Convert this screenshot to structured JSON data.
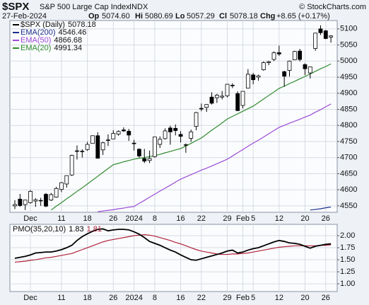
{
  "header": {
    "symbol": "$SPX",
    "name": "S&P 500 Large Cap Index",
    "exchange": "INDX",
    "copyright": "© StockCharts.com",
    "date": "27-Feb-2024",
    "quote": [
      {
        "label": "Op",
        "value": "5074.60"
      },
      {
        "label": "Hi",
        "value": "5080.69"
      },
      {
        "label": "Lo",
        "value": "5057.29"
      },
      {
        "label": "Cl",
        "value": "5078.18"
      },
      {
        "label": "Chg",
        "value": "+8.65 (+0.17%)"
      }
    ]
  },
  "chart_data": [
    {
      "type": "candlestick",
      "up_color": "#ffffff",
      "down_color": "#000000",
      "categories": [
        null,
        null,
        null,
        "Dec",
        null,
        null,
        null,
        null,
        null,
        "11",
        null,
        null,
        null,
        null,
        "18",
        null,
        null,
        null,
        null,
        "26",
        null,
        null,
        null,
        "2024",
        null,
        null,
        null,
        "8",
        null,
        null,
        null,
        null,
        "16",
        null,
        null,
        null,
        "22",
        null,
        null,
        null,
        null,
        "29",
        null,
        null,
        "Feb",
        null,
        "5",
        null,
        null,
        null,
        null,
        "12",
        null,
        null,
        null,
        null,
        "20",
        null,
        null,
        null,
        "26",
        null
      ],
      "candles": {
        "name": "$SPX (Daily)",
        "color": "#000000",
        "open": [
          4550,
          4571,
          4554,
          4560,
          4565,
          4566,
          4586,
          4568,
          4577,
          4601,
          4618,
          4646,
          4721,
          4720,
          4725,
          4744,
          4768,
          4724,
          4754,
          4758,
          4773,
          4786,
          4782,
          4745,
          4726,
          4697,
          4691,
          4703,
          4741,
          4759,
          4792,
          4791,
          4772,
          4740,
          4760,
          4797,
          4853,
          4856,
          4888,
          4886,
          4888,
          4892,
          4925,
          4899,
          4862,
          4916,
          4957,
          4950,
          4973,
          4995,
          5005,
          5026,
          4967,
          4971,
          5004,
          5031,
          4989,
          4963,
          5039,
          5100,
          5094,
          5074.6
        ],
        "high": [
          4568,
          4587,
          4569,
          4599,
          4574,
          4575,
          4590,
          4590,
          4609,
          4624,
          4644,
          4709,
          4738,
          4726,
          4749,
          4769,
          4779,
          4749,
          4772,
          4785,
          4785,
          4794,
          4789,
          4755,
          4729,
          4727,
          4722,
          4764,
          4766,
          4791,
          4799,
          4803,
          4782,
          4744,
          4787,
          4842,
          4868,
          4866,
          4903,
          4898,
          4907,
          4929,
          4931,
          4906,
          4906,
          4975,
          4963,
          4958,
          4999,
          5001,
          5030,
          5048,
          4970,
          5002,
          5032,
          5038,
          4993,
          4983,
          5087,
          5111,
          5097,
          5080.69
        ],
        "low": [
          4540,
          4547,
          4537,
          4557,
          4547,
          4550,
          4546,
          4565,
          4575,
          4593,
          4607,
          4643,
          4694,
          4700,
          4721,
          4744,
          4697,
          4708,
          4736,
          4758,
          4768,
          4780,
          4752,
          4722,
          4700,
          4683,
          4683,
          4700,
          4730,
          4756,
          4740,
          4769,
          4747,
          4715,
          4749,
          4785,
          4844,
          4842,
          4865,
          4870,
          4881,
          4887,
          4916,
          4845,
          4853,
          4916,
          4928,
          4939,
          4970,
          4987,
          5000,
          5016,
          4920,
          4952,
          5003,
          4999,
          4956,
          4946,
          5032,
          5081,
          5068,
          5057.29
        ],
        "close": [
          4554,
          4551,
          4568,
          4595,
          4569,
          4567,
          4549,
          4585,
          4604,
          4622,
          4644,
          4707,
          4720,
          4719,
          4741,
          4768,
          4698,
          4746,
          4755,
          4775,
          4781,
          4783,
          4770,
          4743,
          4705,
          4689,
          4697,
          4764,
          4757,
          4783,
          4780,
          4784,
          4766,
          4739,
          4780,
          4840,
          4851,
          4865,
          4869,
          4894,
          4891,
          4928,
          4925,
          4846,
          4906,
          4959,
          4942,
          4954,
          4995,
          4998,
          5026,
          5022,
          4953,
          5000,
          5030,
          5005,
          4976,
          4982,
          5087,
          5088,
          5070,
          5078.18
        ]
      },
      "series": [
        {
          "name": "EMA(200)",
          "color": "#1c2f8a",
          "values": [
            null,
            null,
            null,
            null,
            null,
            null,
            null,
            null,
            null,
            null,
            null,
            null,
            null,
            null,
            null,
            null,
            null,
            null,
            null,
            null,
            null,
            null,
            null,
            null,
            null,
            null,
            null,
            null,
            null,
            null,
            null,
            null,
            null,
            null,
            null,
            null,
            null,
            null,
            null,
            null,
            null,
            null,
            null,
            null,
            null,
            null,
            null,
            null,
            null,
            null,
            null,
            null,
            null,
            null,
            null,
            null,
            null,
            4537,
            4539,
            4541,
            4544,
            4546.46
          ]
        },
        {
          "name": "EMA(50)",
          "color": "#9b4bd6",
          "values": [
            null,
            null,
            null,
            null,
            null,
            null,
            null,
            null,
            null,
            null,
            null,
            null,
            null,
            null,
            null,
            null,
            4532,
            4534,
            4536,
            4538,
            4541,
            4543,
            4546,
            4548,
            4558,
            4567,
            4577,
            4586,
            4596,
            4605,
            4614,
            4624,
            4633,
            4640,
            4647,
            4654,
            4661,
            4667,
            4674,
            4681,
            4688,
            4695,
            4705,
            4715,
            4725,
            4735,
            4745,
            4754,
            4764,
            4774,
            4784,
            4794,
            4800,
            4807,
            4813,
            4819,
            4826,
            4832,
            4841,
            4849,
            4858,
            4866.68
          ]
        },
        {
          "name": "EMA(20)",
          "color": "#2e8b2e",
          "values": [
            null,
            null,
            null,
            null,
            null,
            null,
            null,
            4537,
            4549,
            4560,
            4572,
            4583,
            4595,
            4606,
            4618,
            4630,
            4642,
            4654,
            4666,
            4678,
            4682,
            4687,
            4691,
            4695,
            4698,
            4700,
            4703,
            4706,
            4710,
            4715,
            4719,
            4724,
            4728,
            4736,
            4744,
            4753,
            4761,
            4773,
            4785,
            4796,
            4808,
            4820,
            4828,
            4836,
            4844,
            4852,
            4860,
            4871,
            4882,
            4893,
            4904,
            4915,
            4922,
            4930,
            4937,
            4945,
            4952,
            4960,
            4968,
            4976,
            4983,
            4991.34
          ]
        }
      ],
      "ylim": [
        4530,
        5126
      ],
      "yticks": [
        4550,
        4600,
        4650,
        4700,
        4750,
        4800,
        4850,
        4900,
        4950,
        5000,
        5050,
        5100
      ],
      "grid": true
    },
    {
      "type": "line",
      "categories": [
        null,
        null,
        null,
        "Dec",
        null,
        null,
        null,
        null,
        null,
        "11",
        null,
        null,
        null,
        null,
        "18",
        null,
        null,
        null,
        null,
        "26",
        null,
        null,
        null,
        "2024",
        null,
        null,
        null,
        "8",
        null,
        null,
        null,
        null,
        "16",
        null,
        null,
        null,
        "22",
        null,
        null,
        null,
        null,
        "29",
        null,
        null,
        "Feb",
        null,
        "5",
        null,
        null,
        null,
        null,
        "12",
        null,
        null,
        null,
        null,
        "20",
        null,
        null,
        null,
        "26",
        null
      ],
      "series": [
        {
          "name": "PMO(35,20,10)",
          "color": "#000000",
          "values": [
            1.53,
            1.55,
            1.57,
            1.6,
            1.64,
            1.65,
            1.66,
            1.66,
            1.68,
            1.71,
            1.75,
            1.8,
            1.9,
            1.98,
            2.04,
            2.09,
            2.13,
            2.14,
            2.1,
            2.12,
            2.13,
            2.13,
            2.12,
            2.08,
            2.03,
            1.96,
            1.88,
            1.84,
            1.8,
            1.75,
            1.7,
            1.66,
            1.6,
            1.55,
            1.5,
            1.49,
            1.52,
            1.55,
            1.58,
            1.61,
            1.64,
            1.68,
            1.7,
            1.64,
            1.66,
            1.7,
            1.73,
            1.75,
            1.79,
            1.83,
            1.87,
            1.9,
            1.88,
            1.85,
            1.84,
            1.82,
            1.78,
            1.74,
            1.78,
            1.8,
            1.82,
            1.83
          ]
        },
        {
          "color": "#b0223a",
          "values": [
            1.45,
            1.46,
            1.47,
            1.49,
            1.5,
            1.52,
            1.54,
            1.55,
            1.57,
            1.59,
            1.61,
            1.63,
            1.67,
            1.71,
            1.75,
            1.79,
            1.83,
            1.87,
            1.9,
            1.92,
            1.94,
            1.96,
            1.98,
            2,
            2.01,
            2.02,
            2.01,
            1.99,
            1.96,
            1.93,
            1.9,
            1.86,
            1.83,
            1.79,
            1.75,
            1.71,
            1.68,
            1.66,
            1.64,
            1.62,
            1.61,
            1.61,
            1.62,
            1.62,
            1.63,
            1.64,
            1.66,
            1.68,
            1.7,
            1.72,
            1.74,
            1.76,
            1.77,
            1.78,
            1.79,
            1.79,
            1.79,
            1.79,
            1.79,
            1.8,
            1.8,
            1.81
          ]
        }
      ],
      "ylim": [
        0.84,
        2.235
      ],
      "yticks": [
        {
          "value": 1,
          "label": "1.00"
        },
        {
          "value": 1.25,
          "label": "1.25"
        },
        {
          "value": 1.5,
          "label": "1.50"
        },
        {
          "value": 1.75,
          "label": "1.75"
        },
        {
          "value": 2,
          "label": "2.00"
        }
      ],
      "grid": true
    }
  ]
}
